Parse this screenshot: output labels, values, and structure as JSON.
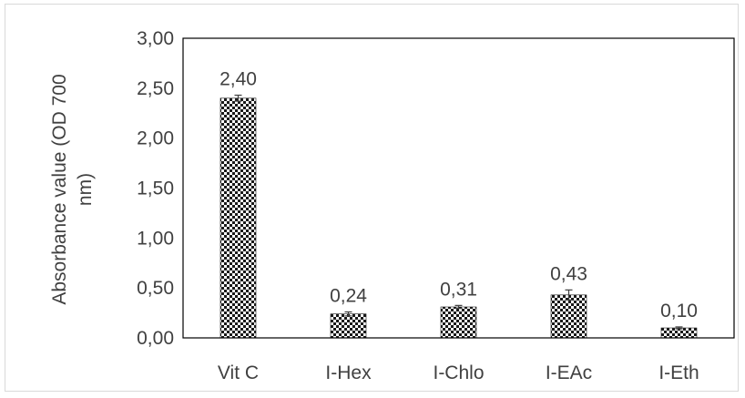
{
  "chart_data": {
    "type": "bar",
    "title": "",
    "xlabel": "",
    "ylabel": "Absorbance value (OD 700 nm)",
    "ylabel_lines": [
      "Absorbance value (OD 700",
      "nm)"
    ],
    "categories": [
      "Vit C",
      "I-Hex",
      "I-Chlo",
      "I-EAc",
      "I-Eth"
    ],
    "values": [
      2.4,
      0.24,
      0.31,
      0.43,
      0.1
    ],
    "value_labels": [
      "2,40",
      "0,24",
      "0,31",
      "0,43",
      "0,10"
    ],
    "errors": [
      0.03,
      0.02,
      0.015,
      0.05,
      0.01
    ],
    "ylim": [
      0,
      3
    ],
    "yticks": [
      0,
      0.5,
      1,
      1.5,
      2,
      2.5,
      3
    ],
    "ytick_labels": [
      "0,00",
      "0,50",
      "1,00",
      "1,50",
      "2,00",
      "2,50",
      "3,00"
    ],
    "grid": false,
    "legend": "none",
    "bar_pattern": "checker",
    "colors": {
      "bar_dark": "#1a1a1a",
      "bar_light": "#ffffff",
      "axis": "#000000",
      "text": "#404040",
      "border": "#d9d9d9"
    }
  }
}
